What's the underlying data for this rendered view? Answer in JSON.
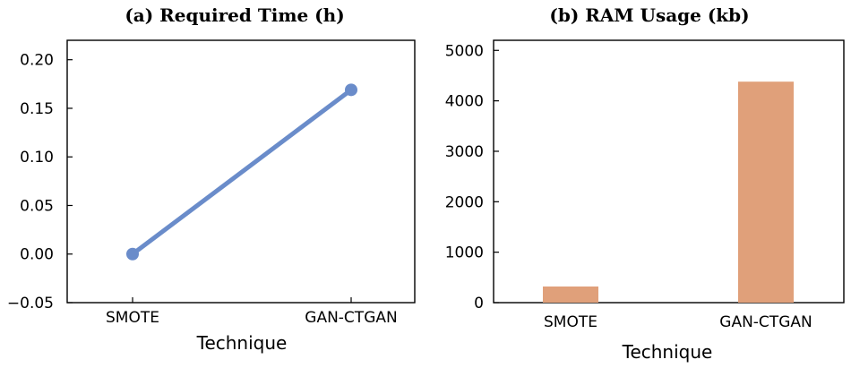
{
  "chart_data": [
    {
      "type": "line",
      "title": "(a) Required Time (h)",
      "xlabel": "Technique",
      "ylabel": "",
      "categories": [
        "SMOTE",
        "GAN-CTGAN"
      ],
      "values": [
        0.0,
        0.169
      ],
      "ylim": [
        -0.05,
        0.22
      ],
      "yticks": [
        -0.05,
        0.0,
        0.05,
        0.1,
        0.15,
        0.2
      ],
      "ytick_labels": [
        "−0.05",
        "0.00",
        "0.05",
        "0.10",
        "0.15",
        "0.20"
      ],
      "color": "#6a8cca",
      "grid": false
    },
    {
      "type": "bar",
      "title": "(b) RAM Usage (kb)",
      "xlabel": "Technique",
      "ylabel": "",
      "categories": [
        "SMOTE",
        "GAN-CTGAN"
      ],
      "values": [
        320,
        4380
      ],
      "ylim": [
        0,
        5200
      ],
      "yticks": [
        0,
        1000,
        2000,
        3000,
        4000,
        5000
      ],
      "ytick_labels": [
        "0",
        "1000",
        "2000",
        "3000",
        "4000",
        "5000"
      ],
      "color": "#e0a07a",
      "grid": false
    }
  ]
}
